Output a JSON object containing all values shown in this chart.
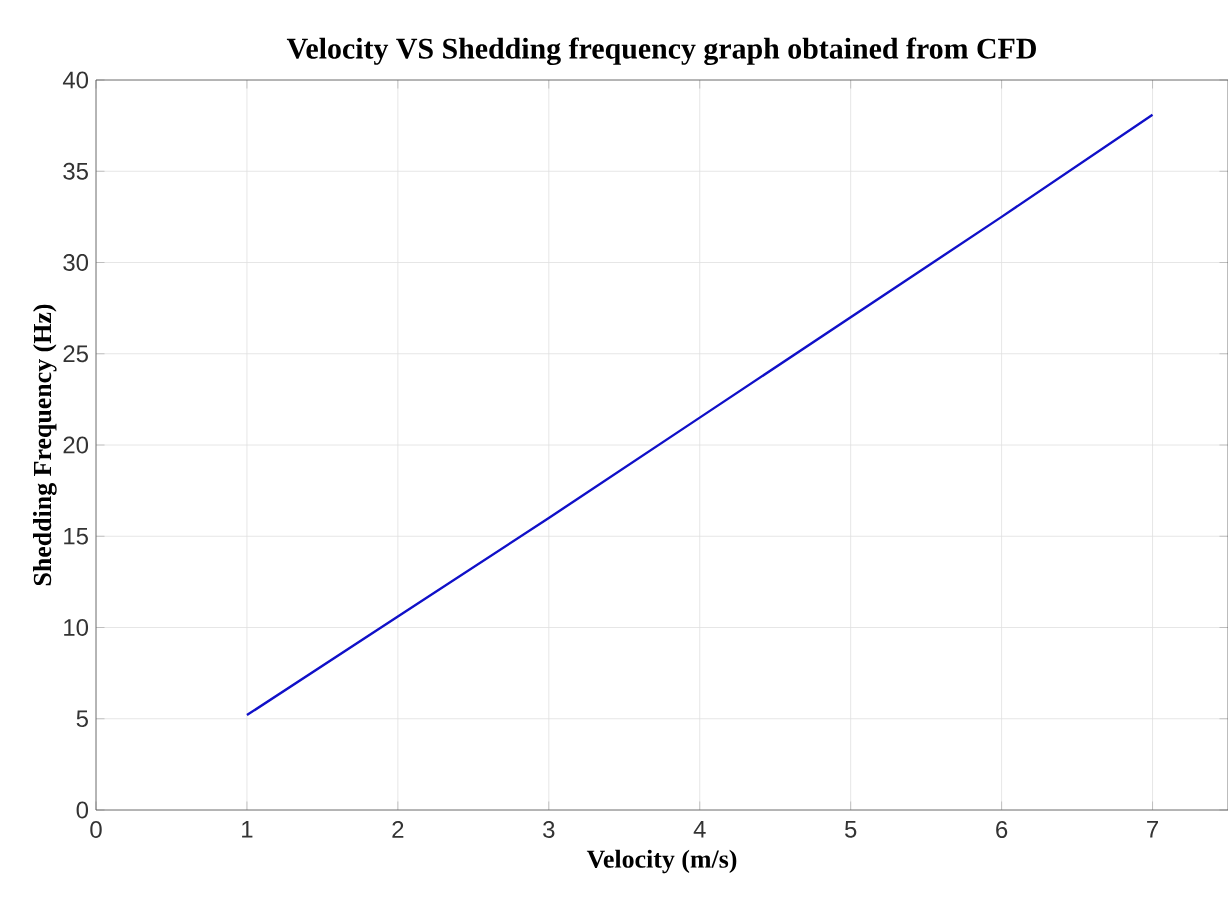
{
  "chart_data": {
    "type": "line",
    "title": "Velocity VS Shedding frequency graph obtained from CFD",
    "xlabel": "Velocity (m/s)",
    "ylabel": "Shedding Frequency (Hz)",
    "x": [
      1,
      2,
      3,
      4,
      5,
      6,
      7
    ],
    "series": [
      {
        "color": "#1010c8",
        "values": [
          5.2,
          10.6,
          16.0,
          21.5,
          27.0,
          32.5,
          38.1
        ]
      }
    ],
    "xlim": [
      0,
      7.5
    ],
    "ylim": [
      0,
      40
    ],
    "xticks": [
      0,
      1,
      2,
      3,
      4,
      5,
      6,
      7
    ],
    "yticks": [
      0,
      5,
      10,
      15,
      20,
      25,
      30,
      35,
      40
    ],
    "grid": true,
    "marker": "none",
    "line_style": "solid"
  }
}
